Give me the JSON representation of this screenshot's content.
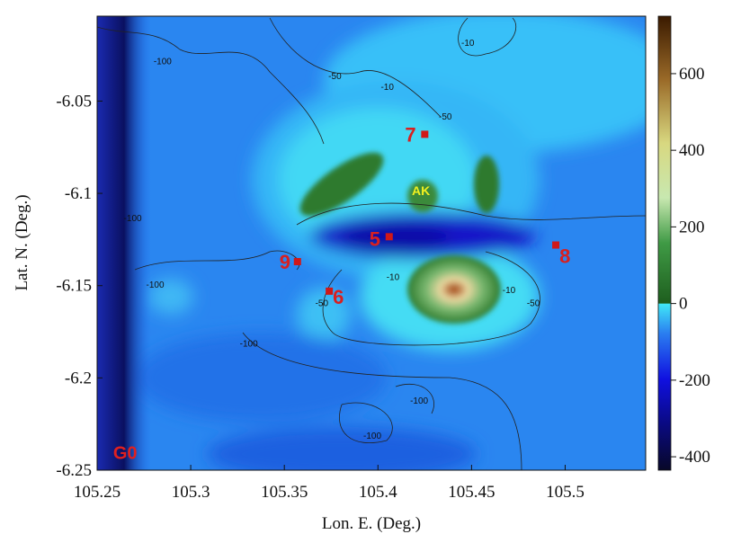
{
  "chart_data": {
    "type": "contour",
    "x_label": "Lon. E. (Deg.)",
    "y_label": "Lat. N. (Deg.)",
    "xlim": [
      105.25,
      105.543
    ],
    "ylim": [
      -6.25,
      -6.004
    ],
    "xticks": [
      105.25,
      105.3,
      105.35,
      105.4,
      105.45,
      105.5
    ],
    "yticks": [
      -6.05,
      -6.1,
      -6.15,
      -6.2,
      -6.25
    ],
    "colorbar_lim": [
      -435,
      750
    ],
    "colorbar_ticks": [
      -400,
      -200,
      0,
      200,
      400,
      600
    ],
    "stations": [
      {
        "name": "5",
        "lon": 105.406,
        "lat": -6.1235
      },
      {
        "name": "6",
        "lon": 105.374,
        "lat": -6.153
      },
      {
        "name": "7",
        "lon": 105.425,
        "lat": -6.068
      },
      {
        "name": "8",
        "lon": 105.495,
        "lat": -6.128
      },
      {
        "name": "9",
        "lon": 105.357,
        "lat": -6.137
      }
    ],
    "places": [
      {
        "name": "AK",
        "lon": 105.423,
        "lat": -6.098
      },
      {
        "name": "G0",
        "lon": 105.265,
        "lat": -6.241
      }
    ],
    "contour_labels": [
      {
        "text": "-50",
        "lon": 105.377,
        "lat": -6.038
      },
      {
        "text": "-10",
        "lon": 105.405,
        "lat": -6.044
      },
      {
        "text": "-10",
        "lon": 105.448,
        "lat": -6.02
      },
      {
        "text": "-50",
        "lon": 105.436,
        "lat": -6.06
      },
      {
        "text": "-100",
        "lon": 105.285,
        "lat": -6.03
      },
      {
        "text": "-100",
        "lon": 105.269,
        "lat": -6.115
      },
      {
        "text": "-100",
        "lon": 105.281,
        "lat": -6.151
      },
      {
        "text": "-10",
        "lon": 105.408,
        "lat": -6.147
      },
      {
        "text": "-50",
        "lon": 105.37,
        "lat": -6.161
      },
      {
        "text": "-100",
        "lon": 105.331,
        "lat": -6.183
      },
      {
        "text": "-100",
        "lon": 105.422,
        "lat": -6.214
      },
      {
        "text": "-100",
        "lon": 105.397,
        "lat": -6.233
      },
      {
        "text": "-50",
        "lon": 105.483,
        "lat": -6.161
      },
      {
        "text": "-10",
        "lon": 105.47,
        "lat": -6.154
      }
    ]
  }
}
